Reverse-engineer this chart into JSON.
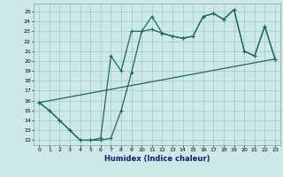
{
  "xlabel": "Humidex (Indice chaleur)",
  "bg_color": "#cce8e8",
  "grid_color": "#aacccc",
  "line_color": "#1a6b5a",
  "xlim": [
    -0.5,
    23.5
  ],
  "ylim": [
    11.5,
    25.8
  ],
  "xticks": [
    0,
    1,
    2,
    3,
    4,
    5,
    6,
    7,
    8,
    9,
    10,
    11,
    12,
    13,
    14,
    15,
    16,
    17,
    18,
    19,
    20,
    21,
    22,
    23
  ],
  "yticks": [
    12,
    13,
    14,
    15,
    16,
    17,
    18,
    19,
    20,
    21,
    22,
    23,
    24,
    25
  ],
  "line1_y": [
    15.8,
    15.0,
    14.0,
    13.0,
    12.0,
    12.0,
    12.0,
    12.2,
    15.0,
    18.8,
    23.0,
    24.5,
    22.8,
    22.5,
    22.3,
    22.5,
    24.5,
    24.8,
    24.2,
    25.2,
    21.0,
    20.5,
    23.5,
    20.2
  ],
  "line2_y": [
    15.8,
    15.0,
    14.0,
    13.0,
    12.0,
    12.0,
    12.2,
    20.5,
    19.0,
    23.0,
    23.0,
    23.2,
    22.8,
    22.5,
    22.3,
    22.5,
    24.5,
    24.8,
    24.2,
    25.2,
    21.0,
    20.5,
    23.5,
    20.2
  ],
  "line3_y": [
    15.8,
    20.2
  ],
  "line3_x": [
    0,
    23
  ]
}
